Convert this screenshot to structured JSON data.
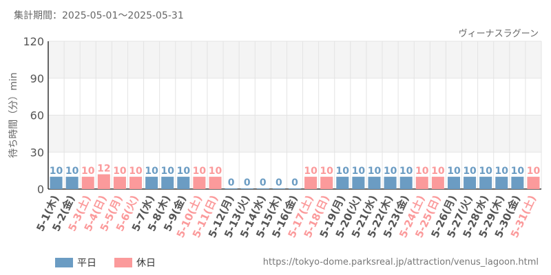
{
  "period_label": "集計期間：2025-05-01～2025-05-31",
  "url": "https://tokyo-dome.parksreal.jp/attraction/venus_lagoon.html",
  "colors": {
    "weekday": "#6b9cc3",
    "holiday": "#fb9a9b",
    "band": "#f4f4f4",
    "grid": "#e3e3e3"
  },
  "chart_data": {
    "type": "bar",
    "title": "",
    "subtitle": "ヴィーナスラグーン",
    "ylabel": "待ち時間（分）min",
    "ylim": [
      0,
      120
    ],
    "yticks": [
      "0",
      "30",
      "60",
      "90",
      "120"
    ],
    "categories": [
      "5-1(木)",
      "5-2(金)",
      "5-3(土)",
      "5-4(日)",
      "5-5(月)",
      "5-6(火)",
      "5-7(水)",
      "5-8(木)",
      "5-9(金)",
      "5-10(土)",
      "5-11(日)",
      "5-12(月)",
      "5-13(火)",
      "5-14(水)",
      "5-15(木)",
      "5-16(金)",
      "5-17(土)",
      "5-18(日)",
      "5-19(月)",
      "5-20(火)",
      "5-21(水)",
      "5-22(木)",
      "5-23(金)",
      "5-24(土)",
      "5-25(日)",
      "5-26(月)",
      "5-27(火)",
      "5-28(水)",
      "5-29(木)",
      "5-30(金)",
      "5-31(土)"
    ],
    "values": [
      10,
      10,
      10,
      12,
      10,
      10,
      10,
      10,
      10,
      10,
      10,
      0,
      0,
      0,
      0,
      0,
      10,
      10,
      10,
      10,
      10,
      10,
      10,
      10,
      10,
      10,
      10,
      10,
      10,
      10,
      10
    ],
    "day_type": [
      "weekday",
      "weekday",
      "holiday",
      "holiday",
      "holiday",
      "holiday",
      "weekday",
      "weekday",
      "weekday",
      "holiday",
      "holiday",
      "weekday",
      "weekday",
      "weekday",
      "weekday",
      "weekday",
      "holiday",
      "holiday",
      "weekday",
      "weekday",
      "weekday",
      "weekday",
      "weekday",
      "holiday",
      "holiday",
      "weekday",
      "weekday",
      "weekday",
      "weekday",
      "weekday",
      "holiday"
    ],
    "legend": [
      {
        "key": "weekday",
        "label": "平日"
      },
      {
        "key": "holiday",
        "label": "休日"
      }
    ],
    "legend_position": "bottom-left",
    "grid": true
  }
}
